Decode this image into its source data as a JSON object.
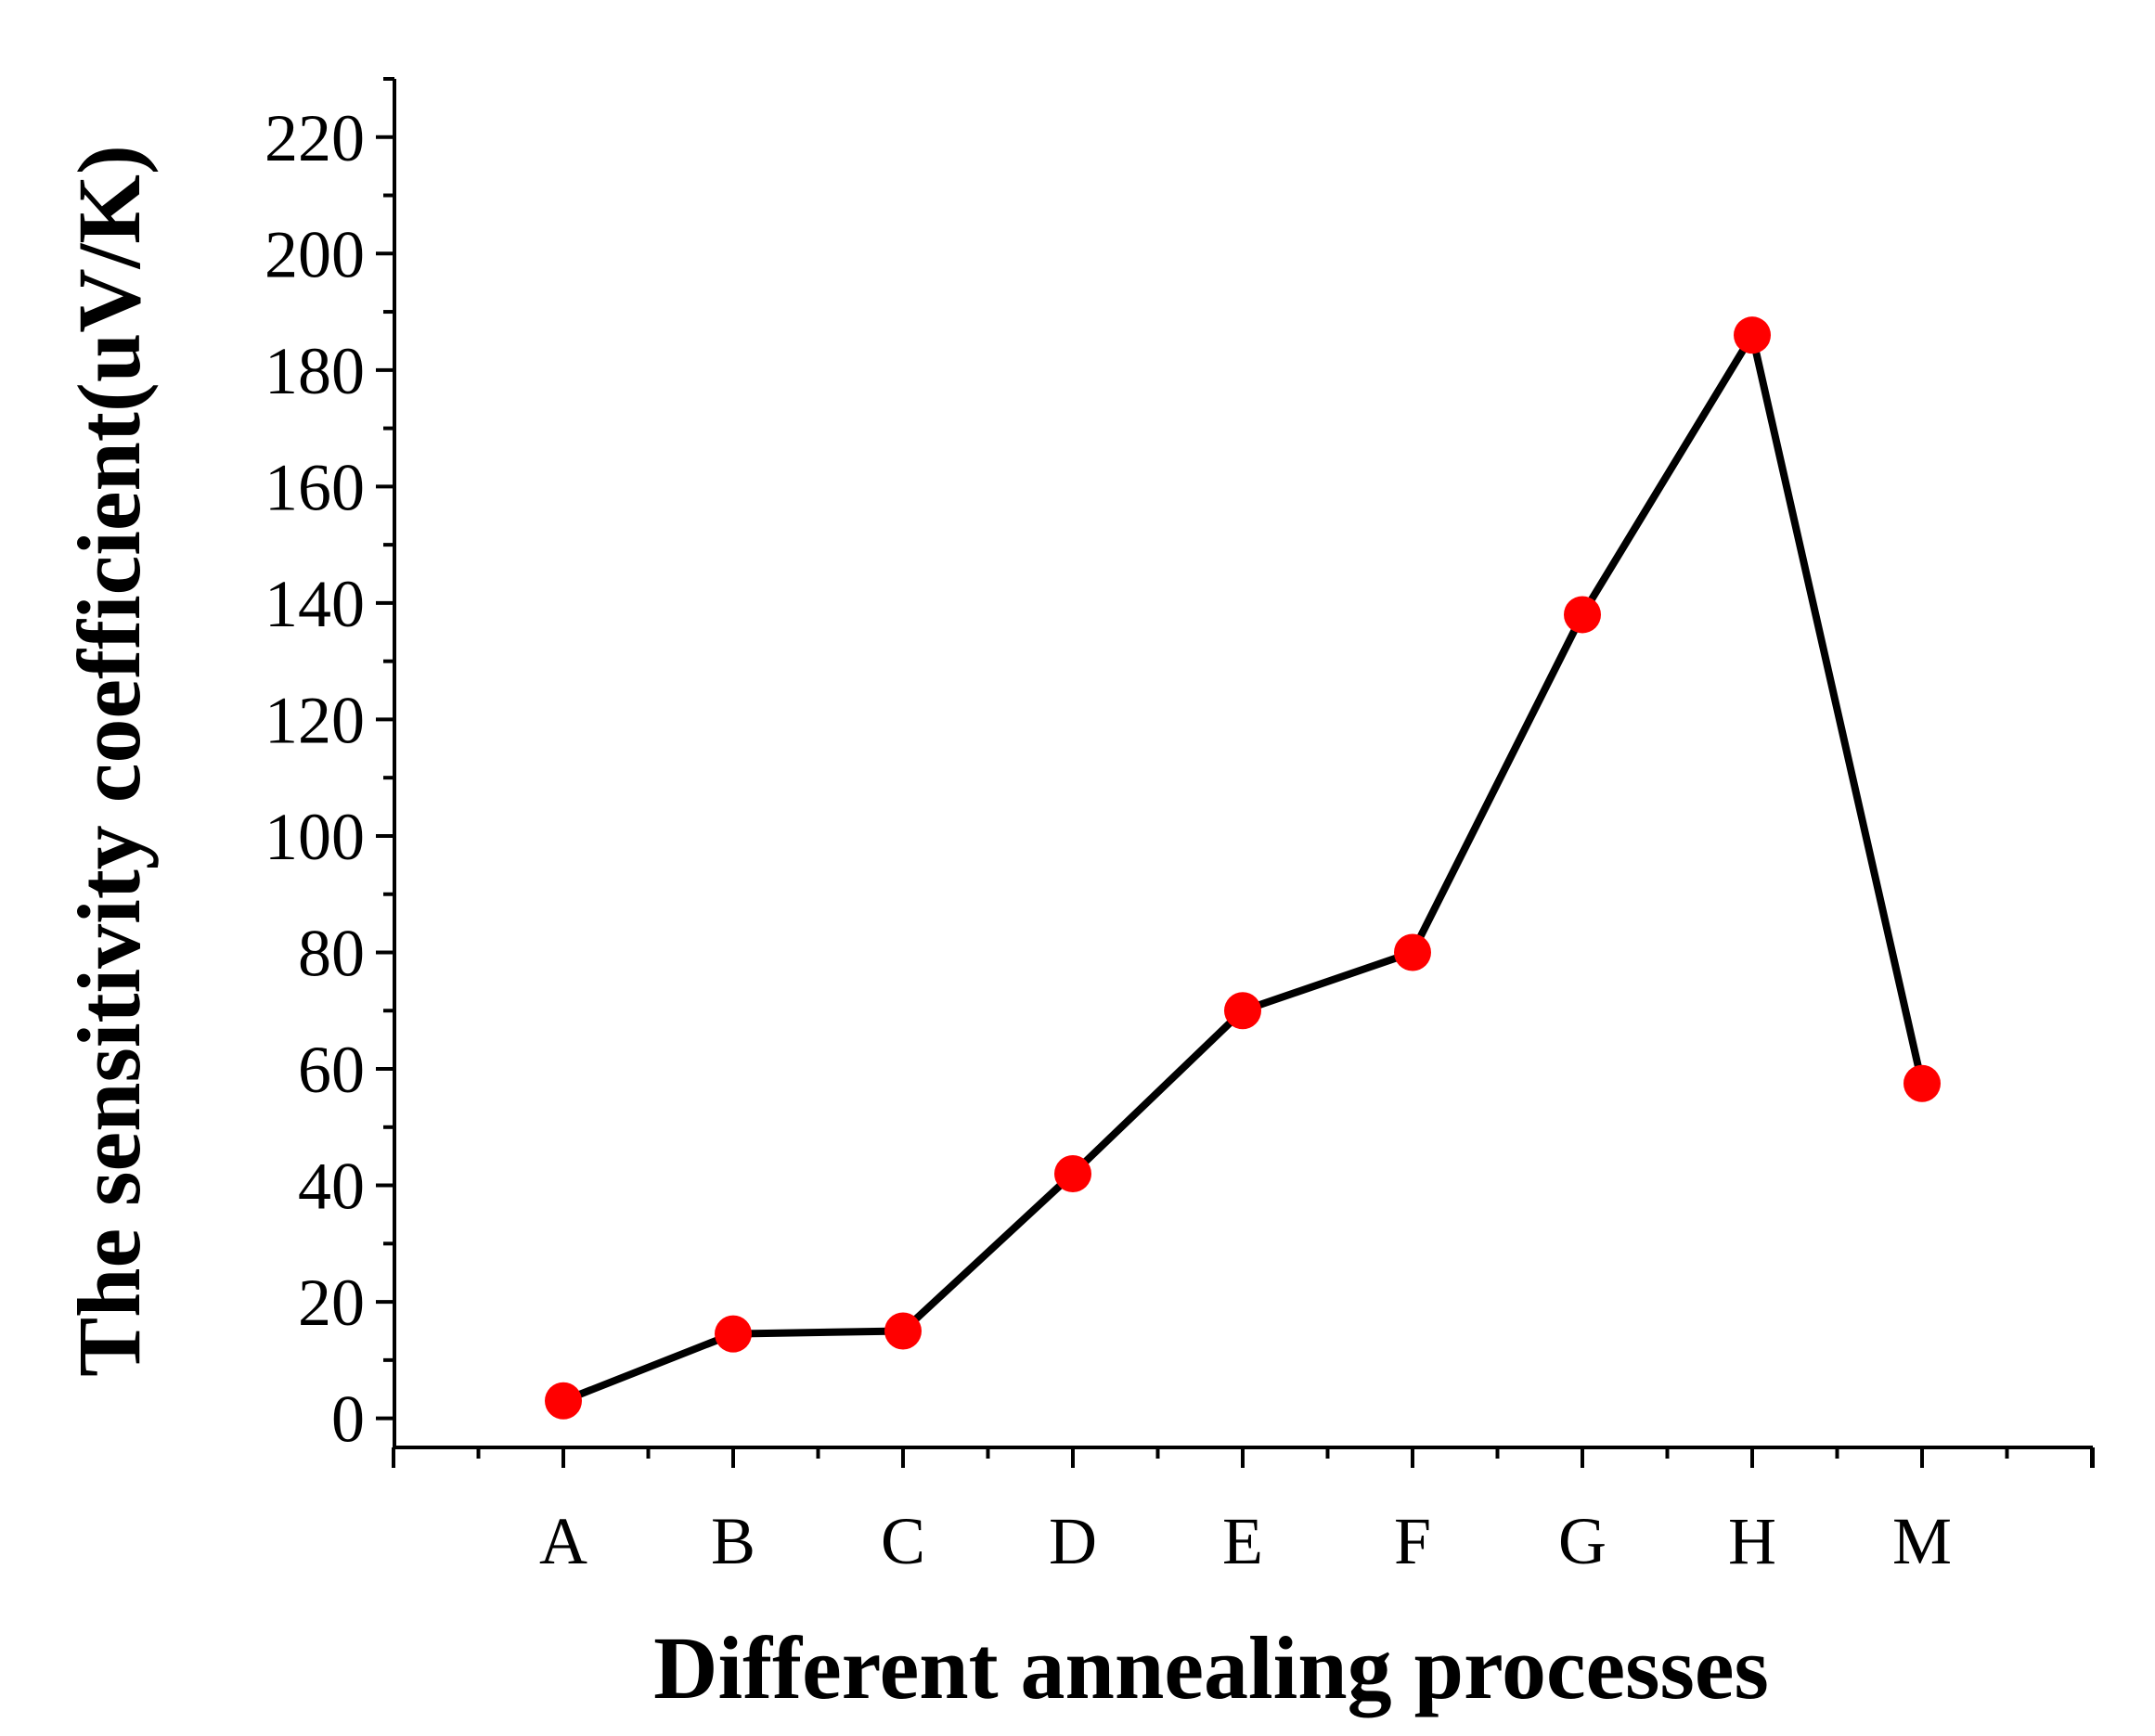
{
  "chart_data": {
    "type": "line",
    "title": "",
    "xlabel": "Different annealing processes",
    "ylabel": "The sensitivity coefficient(uV/K)",
    "categories": [
      "A",
      "B",
      "C",
      "D",
      "E",
      "F",
      "G",
      "H",
      "M"
    ],
    "series": [
      {
        "name": "sensitivity coefficient",
        "values": [
          3,
          14.5,
          15,
          42,
          70,
          80,
          138,
          186,
          57.5
        ]
      }
    ],
    "ylim": [
      -5,
      230
    ],
    "yticks": [
      "0",
      "20",
      "40",
      "60",
      "80",
      "100",
      "120",
      "140",
      "160",
      "180",
      "200",
      "220"
    ],
    "grid": false,
    "line_color": "#000000",
    "marker_color": "#ff0000"
  }
}
